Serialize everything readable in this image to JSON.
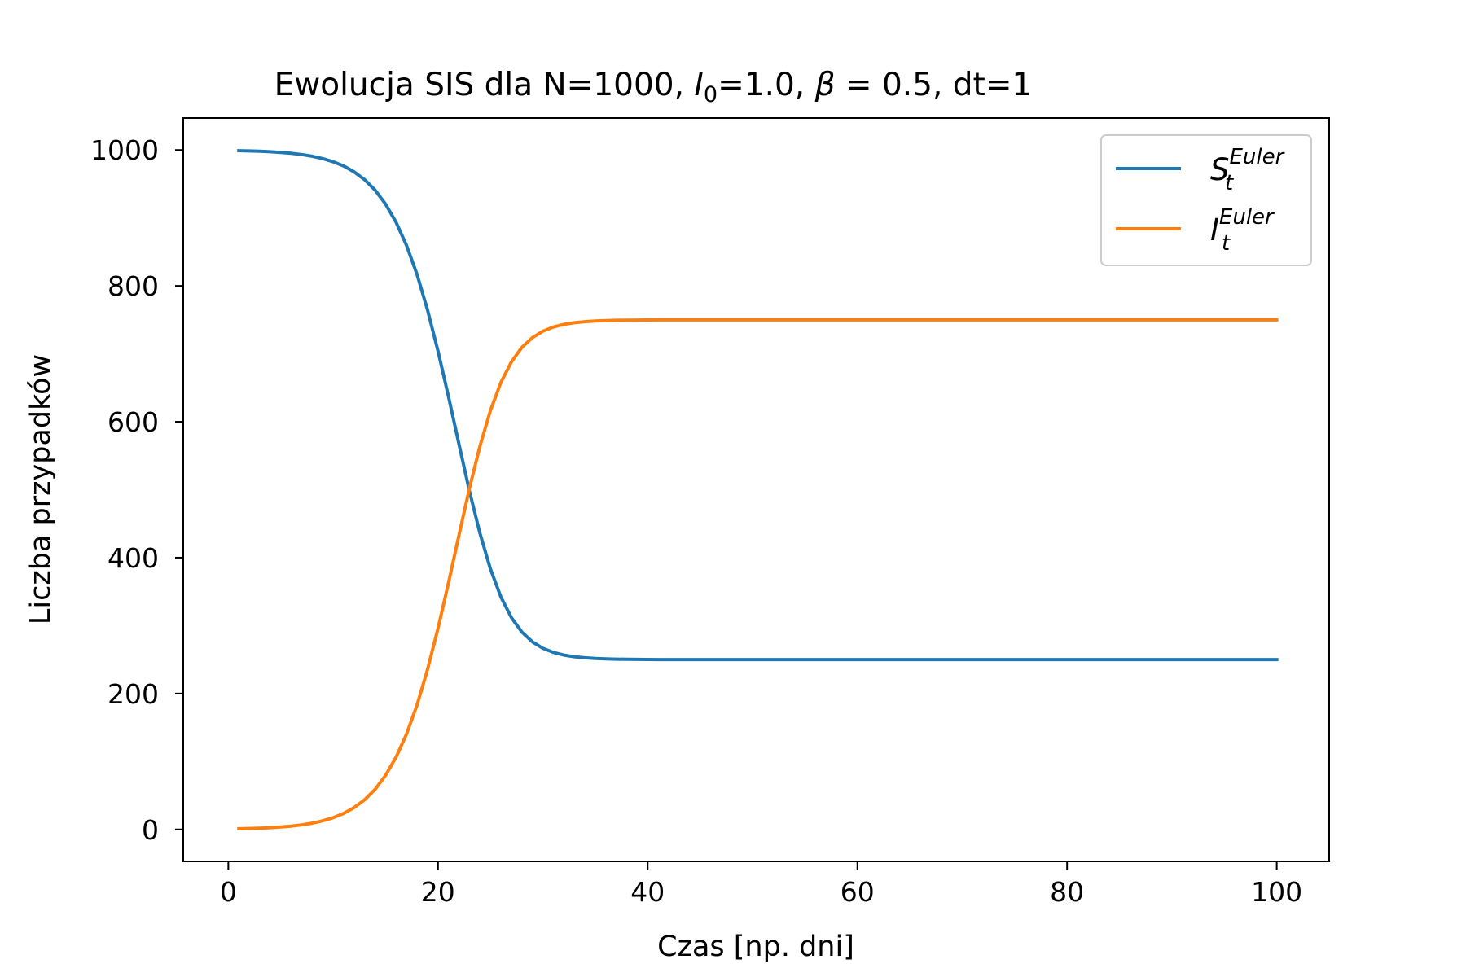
{
  "chart_data": {
    "type": "line",
    "title": {
      "prefix": "Ewolucja SIS dla N=1000, ",
      "i0_symbol": "I",
      "i0_subscript": "0",
      "i0_value": "=1.0, ",
      "beta_symbol": "β",
      "beta_value": " = 0.5, dt=1"
    },
    "xlabel": "Czas [np. dni]",
    "ylabel": "Liczba przypadków",
    "xlim": [
      -4.3,
      105
    ],
    "ylim": [
      -47,
      1047
    ],
    "xticks": [
      0,
      20,
      40,
      60,
      80,
      100
    ],
    "yticks": [
      0,
      200,
      400,
      600,
      800,
      1000
    ],
    "grid": false,
    "legend_position": "top-right",
    "model": {
      "N": 1000,
      "I0": 1.0,
      "beta": 0.5,
      "dt": 1,
      "t_start": 1,
      "t_end": 100
    },
    "series": [
      {
        "name_symbol": "S",
        "name_sub": "t",
        "name_sup": "Euler",
        "color": "#1f77b4",
        "variable": "S"
      },
      {
        "name_symbol": "I",
        "name_sub": "t",
        "name_sup": "Euler",
        "color": "#ff7f0e",
        "variable": "I"
      }
    ]
  }
}
